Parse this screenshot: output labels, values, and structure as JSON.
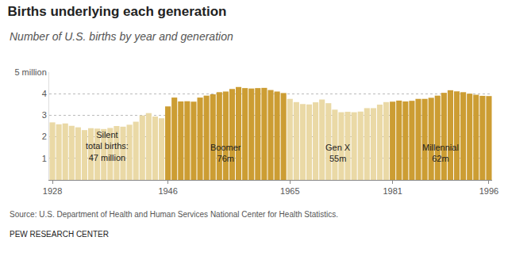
{
  "chart_data": {
    "type": "bar",
    "title": "Births underlying each generation",
    "subtitle": "Number of U.S. births by year and generation",
    "x": [
      1928,
      1929,
      1930,
      1931,
      1932,
      1933,
      1934,
      1935,
      1936,
      1937,
      1938,
      1939,
      1940,
      1941,
      1942,
      1943,
      1944,
      1945,
      1946,
      1947,
      1948,
      1949,
      1950,
      1951,
      1952,
      1953,
      1954,
      1955,
      1956,
      1957,
      1958,
      1959,
      1960,
      1961,
      1962,
      1963,
      1964,
      1965,
      1966,
      1967,
      1968,
      1969,
      1970,
      1971,
      1972,
      1973,
      1974,
      1975,
      1976,
      1977,
      1978,
      1979,
      1980,
      1981,
      1982,
      1983,
      1984,
      1985,
      1986,
      1987,
      1988,
      1989,
      1990,
      1991,
      1992,
      1993,
      1994,
      1995,
      1996
    ],
    "series": [
      {
        "label": "Silent\ntotal births:\n47 million",
        "color": "#ead9a6",
        "values": [
          2.67,
          2.58,
          2.62,
          2.51,
          2.44,
          2.31,
          2.4,
          2.38,
          2.36,
          2.41,
          2.5,
          2.47,
          2.56,
          2.7,
          2.99,
          3.1,
          2.94,
          2.86,
          null,
          null,
          null,
          null,
          null,
          null,
          null,
          null,
          null,
          null,
          null,
          null,
          null,
          null,
          null,
          null,
          null,
          null,
          null,
          null,
          null,
          null,
          null,
          null,
          null,
          null,
          null,
          null,
          null,
          null,
          null,
          null,
          null,
          null,
          null,
          null,
          null,
          null,
          null,
          null,
          null,
          null,
          null,
          null,
          null,
          null,
          null,
          null,
          null,
          null,
          null
        ]
      },
      {
        "label": "Boomer\n76m",
        "color": "#cc9d33",
        "values": [
          null,
          null,
          null,
          null,
          null,
          null,
          null,
          null,
          null,
          null,
          null,
          null,
          null,
          null,
          null,
          null,
          null,
          null,
          3.41,
          3.82,
          3.64,
          3.65,
          3.63,
          3.82,
          3.91,
          3.97,
          4.07,
          4.1,
          4.22,
          4.31,
          4.26,
          4.24,
          4.26,
          4.27,
          4.17,
          4.1,
          4.03,
          null,
          null,
          null,
          null,
          null,
          null,
          null,
          null,
          null,
          null,
          null,
          null,
          null,
          null,
          null,
          null,
          null,
          null,
          null,
          null,
          null,
          null,
          null,
          null,
          null,
          null,
          null,
          null,
          null,
          null,
          null,
          null
        ]
      },
      {
        "label": "Gen X\n55m",
        "color": "#ead9a6",
        "values": [
          null,
          null,
          null,
          null,
          null,
          null,
          null,
          null,
          null,
          null,
          null,
          null,
          null,
          null,
          null,
          null,
          null,
          null,
          null,
          null,
          null,
          null,
          null,
          null,
          null,
          null,
          null,
          null,
          null,
          null,
          null,
          null,
          null,
          null,
          null,
          null,
          null,
          3.76,
          3.61,
          3.52,
          3.5,
          3.6,
          3.73,
          3.56,
          3.26,
          3.14,
          3.16,
          3.14,
          3.17,
          3.33,
          3.33,
          3.49,
          3.61,
          null,
          null,
          null,
          null,
          null,
          null,
          null,
          null,
          null,
          null,
          null,
          null,
          null,
          null,
          null,
          null
        ]
      },
      {
        "label": "Millennial\n62m",
        "color": "#cc9d33",
        "values": [
          null,
          null,
          null,
          null,
          null,
          null,
          null,
          null,
          null,
          null,
          null,
          null,
          null,
          null,
          null,
          null,
          null,
          null,
          null,
          null,
          null,
          null,
          null,
          null,
          null,
          null,
          null,
          null,
          null,
          null,
          null,
          null,
          null,
          null,
          null,
          null,
          null,
          null,
          null,
          null,
          null,
          null,
          null,
          null,
          null,
          null,
          null,
          null,
          null,
          null,
          null,
          null,
          null,
          3.63,
          3.68,
          3.64,
          3.67,
          3.76,
          3.76,
          3.81,
          3.91,
          4.04,
          4.16,
          4.11,
          4.07,
          4.0,
          3.95,
          3.9,
          3.89
        ]
      }
    ],
    "xlim": [
      1927.5,
      1996.5
    ],
    "xticks": [
      1928,
      1946,
      1965,
      1981,
      1996
    ],
    "ylim": [
      0,
      5
    ],
    "yticks": [
      1,
      2,
      3,
      4,
      {
        "value": 5,
        "label": "5 million"
      }
    ],
    "grid": true,
    "source": "Source: U.S. Department of Health and Human Services National Center for Health Statistics.",
    "credit": "PEW RESEARCH CENTER"
  }
}
